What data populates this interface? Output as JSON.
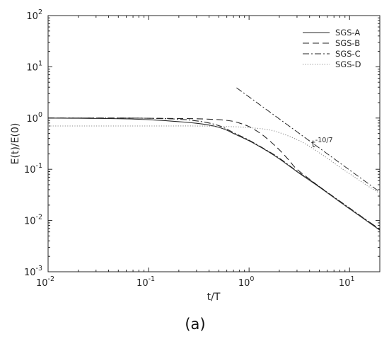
{
  "chart_data": {
    "type": "line",
    "title": "",
    "xlabel": "t/T",
    "ylabel": "E(t)/E(0)",
    "xscale": "log",
    "yscale": "log",
    "xlim": [
      0.01,
      20
    ],
    "ylim": [
      0.001,
      100
    ],
    "x_ticks": [
      {
        "value": 0.01,
        "base": "10",
        "exp": "-2"
      },
      {
        "value": 0.1,
        "base": "10",
        "exp": "-1"
      },
      {
        "value": 1,
        "base": "10",
        "exp": "0"
      },
      {
        "value": 10,
        "base": "10",
        "exp": "1"
      }
    ],
    "y_ticks": [
      {
        "value": 0.001,
        "base": "10",
        "exp": "-3"
      },
      {
        "value": 0.01,
        "base": "10",
        "exp": "-2"
      },
      {
        "value": 0.1,
        "base": "10",
        "exp": "-1"
      },
      {
        "value": 1,
        "base": "10",
        "exp": "0"
      },
      {
        "value": 10,
        "base": "10",
        "exp": "1"
      },
      {
        "value": 100,
        "base": "10",
        "exp": "2"
      }
    ],
    "grid": false,
    "legend_position": "top-right",
    "series": [
      {
        "name": "SGS-A",
        "style": "solid",
        "color": "#262626",
        "x": [
          0.01,
          0.02,
          0.05,
          0.1,
          0.2,
          0.3,
          0.4,
          0.5,
          0.6,
          0.7,
          1.0,
          1.5,
          2.0,
          3.0,
          5.0,
          10.0,
          20.0
        ],
        "y": [
          1.0,
          0.99,
          0.97,
          0.93,
          0.85,
          0.79,
          0.73,
          0.66,
          0.58,
          0.5,
          0.36,
          0.23,
          0.16,
          0.09,
          0.045,
          0.017,
          0.0065
        ]
      },
      {
        "name": "SGS-B",
        "style": "dashed",
        "color": "#262626",
        "x": [
          0.01,
          0.05,
          0.1,
          0.2,
          0.3,
          0.4,
          0.5,
          0.6,
          0.7,
          0.8,
          1.0,
          1.3,
          1.6,
          2.0,
          2.5,
          3.0,
          5.0,
          10.0,
          20.0
        ],
        "y": [
          1.0,
          1.0,
          0.99,
          0.98,
          0.97,
          0.95,
          0.93,
          0.9,
          0.86,
          0.8,
          0.68,
          0.5,
          0.36,
          0.24,
          0.15,
          0.1,
          0.046,
          0.017,
          0.0068
        ]
      },
      {
        "name": "SGS-C",
        "style": "dashdot",
        "color": "#262626",
        "x": [
          0.01,
          0.02,
          0.05,
          0.1,
          0.2,
          0.3,
          0.4,
          0.5,
          0.6,
          0.7,
          1.0,
          1.5,
          2.0,
          3.0,
          5.0,
          10.0,
          20.0
        ],
        "y": [
          1.0,
          1.0,
          1.0,
          0.99,
          0.95,
          0.88,
          0.8,
          0.71,
          0.61,
          0.52,
          0.37,
          0.235,
          0.165,
          0.092,
          0.046,
          0.0175,
          0.0067
        ]
      },
      {
        "name": "SGS-D",
        "style": "dotted",
        "color": "#8c8c8c",
        "x": [
          0.01,
          0.1,
          0.3,
          0.5,
          0.8,
          1.0,
          1.5,
          2.0,
          3.0,
          4.0,
          5.0,
          6.0,
          8.0,
          10.0,
          15.0,
          20.0
        ],
        "y": [
          0.7,
          0.7,
          0.7,
          0.69,
          0.67,
          0.65,
          0.6,
          0.52,
          0.38,
          0.28,
          0.21,
          0.165,
          0.11,
          0.082,
          0.048,
          0.034
        ]
      }
    ],
    "reference_line": {
      "label_base": "t",
      "label_exp": "-10/7",
      "style": "dashdot",
      "color": "#262626",
      "x": [
        0.75,
        20.0
      ],
      "y": [
        3.9,
        0.036
      ],
      "label_x": 4.2,
      "label_y": 0.27
    }
  },
  "caption": "(a)"
}
